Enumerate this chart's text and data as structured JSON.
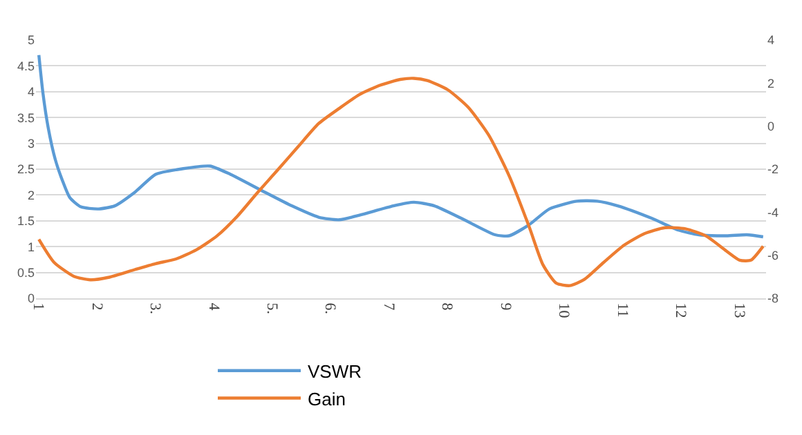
{
  "chart_data": {
    "type": "line",
    "xlim": [
      0.95,
      13.45
    ],
    "xticks": [
      1,
      2,
      {
        "value": 3,
        "label": "3."
      },
      4,
      {
        "value": 5,
        "label": "5."
      },
      {
        "value": 6,
        "label": "6."
      },
      7,
      8,
      9,
      10,
      11,
      12,
      13
    ],
    "ylim": [
      0,
      5
    ],
    "yticks": [
      0,
      0.5,
      1,
      1.5,
      2,
      2.5,
      3,
      3.5,
      4,
      4.5,
      5
    ],
    "y2lim": [
      -8,
      4
    ],
    "y2ticks": [
      -8,
      -6,
      -4,
      -2,
      0,
      2,
      4
    ],
    "grid": "y",
    "legend": "bottom",
    "line_style": "solid",
    "marker": "none",
    "series": [
      {
        "name": "VSWR",
        "color": "#5b9bd5",
        "x": [
          1.0,
          1.07,
          1.16,
          1.28,
          1.4,
          1.53,
          1.72,
          2.02,
          2.3,
          2.65,
          3.0,
          3.47,
          3.93,
          4.28,
          4.86,
          5.33,
          5.79,
          6.14,
          6.49,
          7.07,
          7.42,
          7.77,
          8.23,
          8.81,
          9.05,
          9.4,
          9.74,
          10.21,
          10.56,
          10.91,
          11.49,
          11.95,
          12.3,
          12.77,
          13.12,
          13.4
        ],
        "values": [
          4.71,
          3.97,
          3.3,
          2.69,
          2.29,
          1.95,
          1.77,
          1.73,
          1.79,
          2.06,
          2.4,
          2.51,
          2.56,
          2.4,
          2.06,
          1.79,
          1.57,
          1.52,
          1.61,
          1.79,
          1.86,
          1.79,
          1.55,
          1.23,
          1.21,
          1.43,
          1.73,
          1.88,
          1.88,
          1.79,
          1.55,
          1.32,
          1.23,
          1.21,
          1.23,
          1.19
        ]
      },
      {
        "name": "Gain",
        "color": "#ed7d31",
        "axis": "y2",
        "x": [
          1.0,
          1.26,
          1.6,
          1.88,
          2.19,
          2.65,
          3.0,
          3.35,
          3.7,
          4.05,
          4.4,
          4.74,
          5.09,
          5.44,
          5.79,
          6.14,
          6.49,
          6.84,
          7.19,
          7.42,
          7.65,
          8.0,
          8.35,
          8.7,
          9.05,
          9.4,
          9.63,
          9.86,
          10.09,
          10.33,
          10.67,
          11.02,
          11.37,
          11.72,
          12.07,
          12.42,
          12.77,
          13.0,
          13.19,
          13.4
        ],
        "values": [
          -5.26,
          -6.33,
          -6.98,
          -7.14,
          -7.03,
          -6.66,
          -6.39,
          -6.17,
          -5.74,
          -5.1,
          -4.18,
          -3.1,
          -2.03,
          -0.95,
          0.12,
          0.82,
          1.47,
          1.9,
          2.17,
          2.22,
          2.12,
          1.69,
          0.88,
          -0.41,
          -2.3,
          -4.72,
          -6.44,
          -7.3,
          -7.41,
          -7.14,
          -6.33,
          -5.53,
          -4.99,
          -4.72,
          -4.77,
          -5.1,
          -5.8,
          -6.23,
          -6.23,
          -5.58
        ]
      }
    ]
  }
}
